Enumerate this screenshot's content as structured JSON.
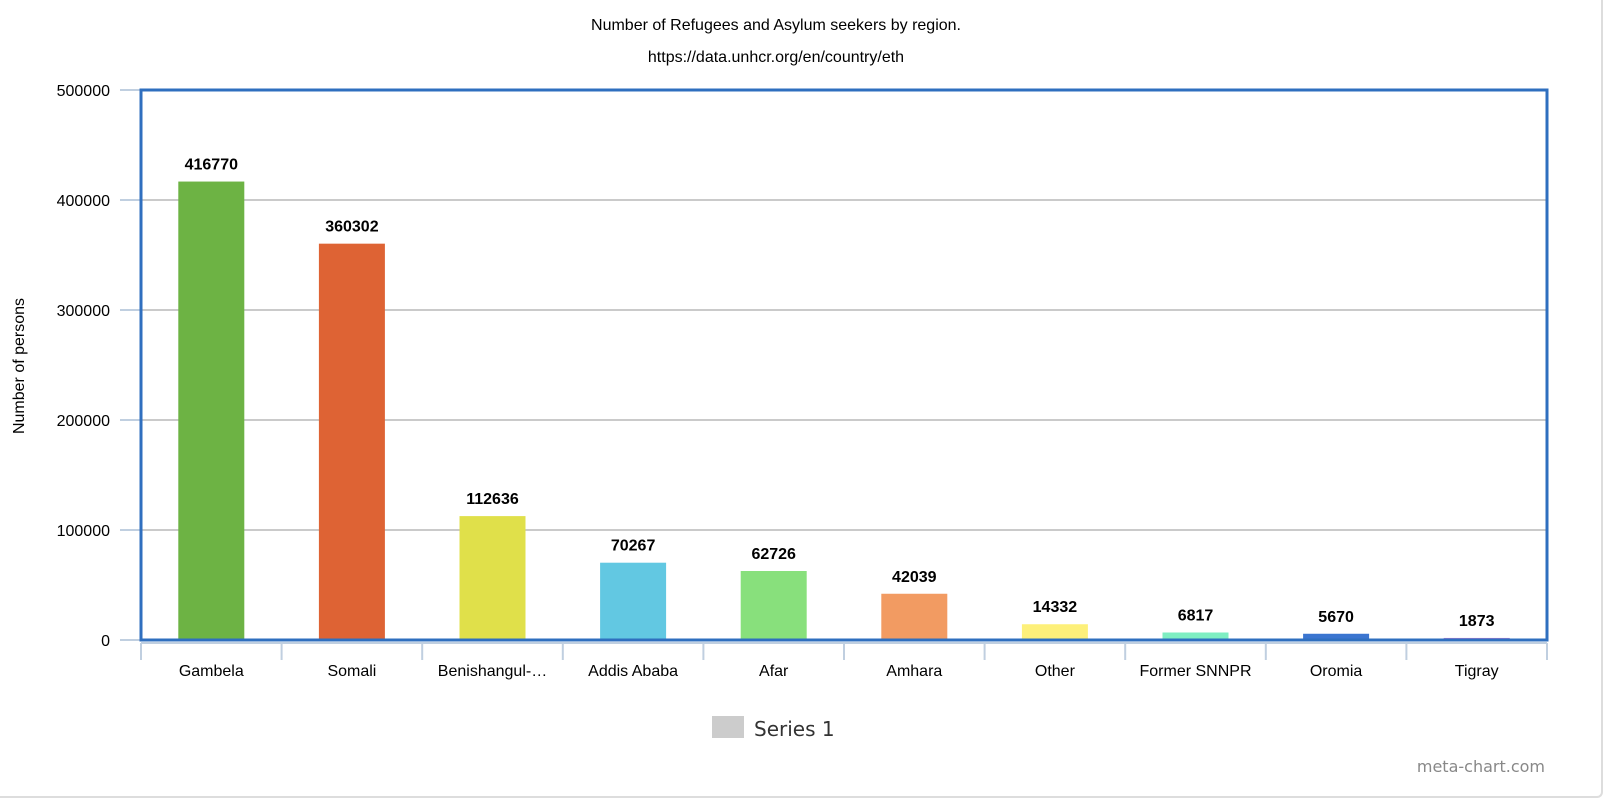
{
  "chart_data": {
    "type": "bar",
    "title": "Number of Refugees and Asylum seekers by region.",
    "subtitle": "https://data.unhcr.org/en/country/eth",
    "xlabel": "",
    "ylabel": "Number of persons",
    "ylim": [
      0,
      500000
    ],
    "yticks": [
      0,
      100000,
      200000,
      300000,
      400000,
      500000
    ],
    "grid": true,
    "legend_position": "bottom",
    "categories": [
      "Gambela",
      "Somali",
      "Benishangul-…",
      "Addis Ababa",
      "Afar",
      "Amhara",
      "Other",
      "Former SNNPR",
      "Oromia",
      "Tigray"
    ],
    "series": [
      {
        "name": "Series 1",
        "values": [
          416770,
          360302,
          112636,
          70267,
          62726,
          42039,
          14332,
          6817,
          5670,
          1873
        ]
      }
    ],
    "bar_colors": [
      "#6db344",
      "#de6334",
      "#e0e04a",
      "#62c8e2",
      "#88e07c",
      "#f29b62",
      "#fdf07a",
      "#7eeec2",
      "#3b75d0",
      "#b07cd0"
    ],
    "legend_swatch_color": "#cccccc",
    "plot_border_color": "#2f6fbf"
  },
  "credit": "meta-chart.com"
}
